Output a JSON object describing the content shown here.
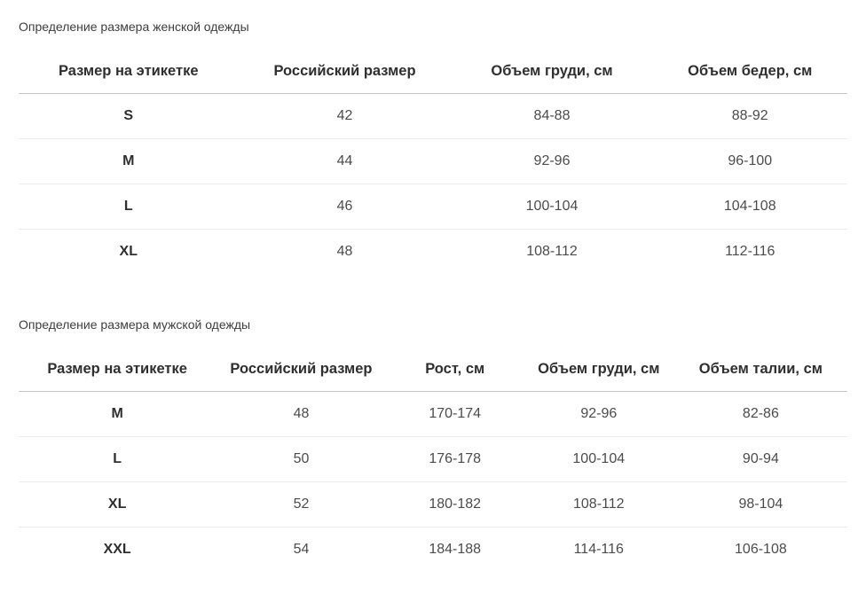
{
  "page": {
    "background": "#ffffff",
    "header_rule_color": "#c9c9c9",
    "row_rule_color": "#e9e9e9",
    "heading_color": "#3d3d3d",
    "header_text_color": "#2f2f2f",
    "cell_text_color": "#4b4b4b"
  },
  "women_table": {
    "title": "Определение размера женской одежды",
    "columns": [
      "Размер на этикетке",
      "Российский размер",
      "Объем груди, см",
      "Объем бедер, см"
    ],
    "rows": [
      [
        "S",
        "42",
        "84-88",
        "88-92"
      ],
      [
        "M",
        "44",
        "92-96",
        "96-100"
      ],
      [
        "L",
        "46",
        "100-104",
        "104-108"
      ],
      [
        "XL",
        "48",
        "108-112",
        "112-116"
      ]
    ]
  },
  "men_table": {
    "title": "Определение размера мужской одежды",
    "columns": [
      "Размер на этикетке",
      "Российский размер",
      "Рост, см",
      "Объем груди, см",
      "Объем талии, см"
    ],
    "rows": [
      [
        "M",
        "48",
        "170-174",
        "92-96",
        "82-86"
      ],
      [
        "L",
        "50",
        "176-178",
        "100-104",
        "90-94"
      ],
      [
        "XL",
        "52",
        "180-182",
        "108-112",
        "98-104"
      ],
      [
        "XXL",
        "54",
        "184-188",
        "114-116",
        "106-108"
      ]
    ]
  }
}
